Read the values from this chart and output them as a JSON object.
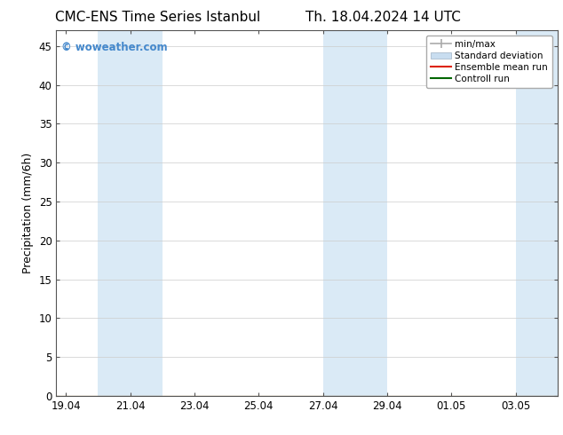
{
  "title": "CMC-ENS Time Series Istanbul",
  "title2": "Th. 18.04.2024 14 UTC",
  "ylabel": "Precipitation (mm/6h)",
  "background_color": "#ffffff",
  "plot_bg_color": "#ffffff",
  "ylim": [
    0,
    47
  ],
  "yticks": [
    0,
    5,
    10,
    15,
    20,
    25,
    30,
    35,
    40,
    45
  ],
  "xtick_labels": [
    "19.04",
    "21.04",
    "23.04",
    "25.04",
    "27.04",
    "29.04",
    "01.05",
    "03.05"
  ],
  "xtick_positions": [
    0,
    2,
    4,
    6,
    8,
    10,
    12,
    14
  ],
  "xmin": -0.3,
  "xmax": 15.3,
  "shade_bands": [
    {
      "xmin": 1.0,
      "xmax": 3.0
    },
    {
      "xmin": 8.0,
      "xmax": 10.0
    },
    {
      "xmin": 14.0,
      "xmax": 15.3
    }
  ],
  "shade_color": "#daeaf6",
  "watermark": "© woweather.com",
  "watermark_color": "#4488cc",
  "legend_items": [
    {
      "label": "min/max",
      "color": "#aaaaaa",
      "style": "minmax"
    },
    {
      "label": "Standard deviation",
      "color": "#c8ddf0",
      "style": "fill"
    },
    {
      "label": "Ensemble mean run",
      "color": "#dd2200",
      "style": "line"
    },
    {
      "label": "Controll run",
      "color": "#006600",
      "style": "line"
    }
  ],
  "title_fontsize": 11,
  "tick_fontsize": 8.5,
  "ylabel_fontsize": 9,
  "legend_fontsize": 7.5
}
